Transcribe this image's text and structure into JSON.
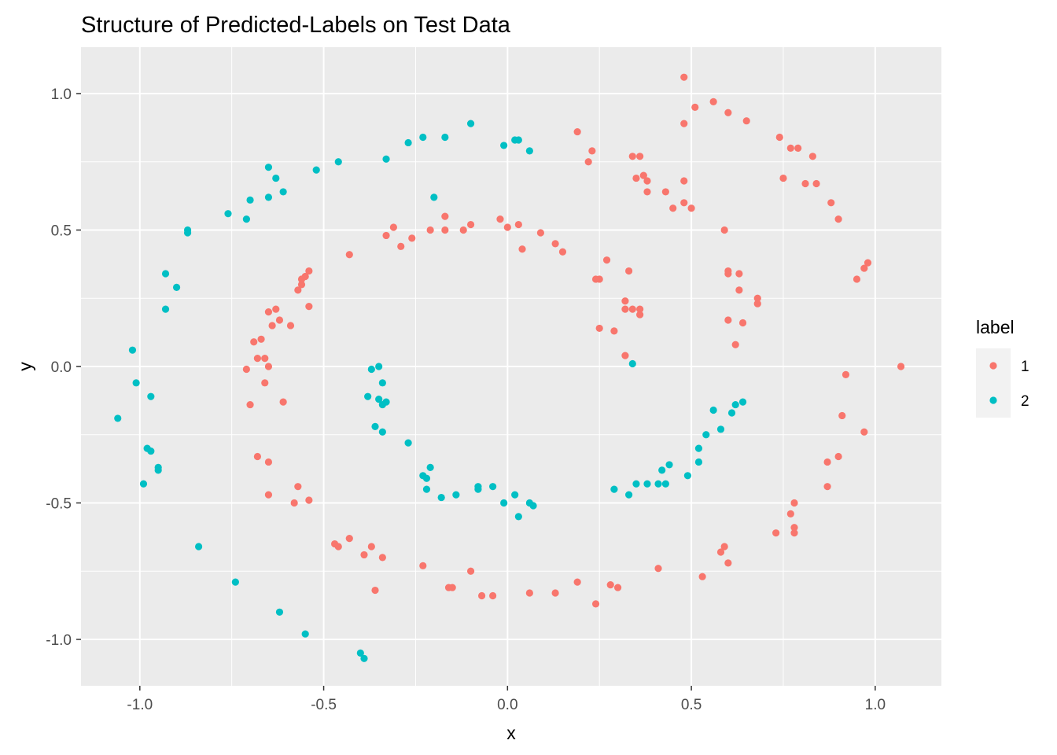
{
  "chart_data": {
    "type": "scatter",
    "title": "Structure of Predicted-Labels on Test Data",
    "xlabel": "x",
    "ylabel": "y",
    "xlim": [
      -1.16,
      1.18
    ],
    "ylim": [
      -1.17,
      1.17
    ],
    "x_ticks": [
      -1.0,
      -0.5,
      0.0,
      0.5,
      1.0
    ],
    "x_tick_labels": [
      "-1.0",
      "-0.5",
      "0.0",
      "0.5",
      "1.0"
    ],
    "y_ticks": [
      -1.0,
      -0.5,
      0.0,
      0.5,
      1.0
    ],
    "y_tick_labels": [
      "-1.0",
      "-0.5",
      "0.0",
      "0.5",
      "1.0"
    ],
    "grid": true,
    "legend": {
      "title": "label",
      "position": "right"
    },
    "series": [
      {
        "name": "1",
        "color": "#F8766D",
        "points": [
          [
            0.48,
            1.06
          ],
          [
            0.51,
            0.95
          ],
          [
            0.56,
            0.97
          ],
          [
            0.6,
            0.93
          ],
          [
            0.65,
            0.9
          ],
          [
            0.48,
            0.89
          ],
          [
            0.19,
            0.86
          ],
          [
            0.23,
            0.79
          ],
          [
            0.22,
            0.75
          ],
          [
            0.34,
            0.77
          ],
          [
            0.36,
            0.77
          ],
          [
            0.35,
            0.69
          ],
          [
            0.37,
            0.7
          ],
          [
            0.38,
            0.68
          ],
          [
            0.38,
            0.64
          ],
          [
            0.43,
            0.64
          ],
          [
            0.45,
            0.58
          ],
          [
            0.48,
            0.68
          ],
          [
            0.48,
            0.6
          ],
          [
            0.5,
            0.58
          ],
          [
            0.59,
            0.5
          ],
          [
            0.74,
            0.84
          ],
          [
            0.77,
            0.8
          ],
          [
            0.79,
            0.8
          ],
          [
            0.83,
            0.77
          ],
          [
            0.75,
            0.69
          ],
          [
            0.81,
            0.67
          ],
          [
            0.84,
            0.67
          ],
          [
            0.88,
            0.6
          ],
          [
            0.9,
            0.54
          ],
          [
            0.98,
            0.38
          ],
          [
            0.97,
            0.36
          ],
          [
            0.95,
            0.32
          ],
          [
            -0.02,
            0.54
          ],
          [
            0.0,
            0.51
          ],
          [
            0.03,
            0.52
          ],
          [
            0.04,
            0.43
          ],
          [
            0.09,
            0.49
          ],
          [
            0.13,
            0.45
          ],
          [
            0.15,
            0.42
          ],
          [
            -0.1,
            0.52
          ],
          [
            -0.12,
            0.5
          ],
          [
            -0.17,
            0.55
          ],
          [
            -0.17,
            0.5
          ],
          [
            -0.21,
            0.5
          ],
          [
            -0.26,
            0.47
          ],
          [
            -0.31,
            0.51
          ],
          [
            -0.33,
            0.48
          ],
          [
            -0.29,
            0.44
          ],
          [
            -0.43,
            0.41
          ],
          [
            0.25,
            0.32
          ],
          [
            0.27,
            0.39
          ],
          [
            0.24,
            0.32
          ],
          [
            0.33,
            0.35
          ],
          [
            0.32,
            0.24
          ],
          [
            0.32,
            0.21
          ],
          [
            0.34,
            0.21
          ],
          [
            0.36,
            0.21
          ],
          [
            0.36,
            0.19
          ],
          [
            0.25,
            0.14
          ],
          [
            0.29,
            0.13
          ],
          [
            0.32,
            0.04
          ],
          [
            0.6,
            0.34
          ],
          [
            0.6,
            0.35
          ],
          [
            0.63,
            0.34
          ],
          [
            0.63,
            0.28
          ],
          [
            0.68,
            0.25
          ],
          [
            0.68,
            0.23
          ],
          [
            0.6,
            0.17
          ],
          [
            0.64,
            0.16
          ],
          [
            0.62,
            0.08
          ],
          [
            -0.54,
            0.35
          ],
          [
            -0.55,
            0.33
          ],
          [
            -0.56,
            0.32
          ],
          [
            -0.56,
            0.3
          ],
          [
            -0.57,
            0.28
          ],
          [
            -0.54,
            0.22
          ],
          [
            -0.63,
            0.21
          ],
          [
            -0.65,
            0.2
          ],
          [
            -0.64,
            0.15
          ],
          [
            -0.62,
            0.17
          ],
          [
            -0.59,
            0.15
          ],
          [
            -0.67,
            0.1
          ],
          [
            -0.69,
            0.09
          ],
          [
            -0.68,
            0.03
          ],
          [
            -0.66,
            0.03
          ],
          [
            -0.65,
            0.0
          ],
          [
            -0.71,
            -0.01
          ],
          [
            -0.66,
            -0.06
          ],
          [
            -0.61,
            -0.13
          ],
          [
            -0.7,
            -0.14
          ],
          [
            -0.68,
            -0.33
          ],
          [
            -0.65,
            -0.35
          ],
          [
            -0.65,
            -0.47
          ],
          [
            -0.58,
            -0.5
          ],
          [
            -0.57,
            -0.44
          ],
          [
            -0.54,
            -0.49
          ],
          [
            -0.47,
            -0.65
          ],
          [
            -0.46,
            -0.66
          ],
          [
            -0.43,
            -0.63
          ],
          [
            -0.39,
            -0.69
          ],
          [
            -0.37,
            -0.66
          ],
          [
            -0.34,
            -0.7
          ],
          [
            -0.36,
            -0.82
          ],
          [
            -0.23,
            -0.73
          ],
          [
            -0.16,
            -0.81
          ],
          [
            -0.15,
            -0.81
          ],
          [
            -0.1,
            -0.75
          ],
          [
            -0.07,
            -0.84
          ],
          [
            -0.04,
            -0.84
          ],
          [
            0.06,
            -0.83
          ],
          [
            0.13,
            -0.83
          ],
          [
            0.19,
            -0.79
          ],
          [
            0.24,
            -0.87
          ],
          [
            0.28,
            -0.8
          ],
          [
            0.3,
            -0.81
          ],
          [
            0.41,
            -0.74
          ],
          [
            0.53,
            -0.77
          ],
          [
            0.59,
            -0.66
          ],
          [
            0.58,
            -0.68
          ],
          [
            0.6,
            -0.72
          ],
          [
            0.73,
            -0.61
          ],
          [
            0.77,
            -0.54
          ],
          [
            0.78,
            -0.59
          ],
          [
            0.78,
            -0.61
          ],
          [
            0.78,
            -0.5
          ],
          [
            0.87,
            -0.44
          ],
          [
            0.87,
            -0.35
          ],
          [
            0.9,
            -0.33
          ],
          [
            0.91,
            -0.18
          ],
          [
            0.92,
            -0.03
          ],
          [
            0.97,
            -0.24
          ],
          [
            1.07,
            0.0
          ]
        ]
      },
      {
        "name": "2",
        "color": "#00BFC4",
        "points": [
          [
            -0.1,
            0.89
          ],
          [
            -0.01,
            0.81
          ],
          [
            0.02,
            0.83
          ],
          [
            0.03,
            0.83
          ],
          [
            0.06,
            0.79
          ],
          [
            -0.17,
            0.84
          ],
          [
            -0.23,
            0.84
          ],
          [
            -0.27,
            0.82
          ],
          [
            -0.33,
            0.76
          ],
          [
            -0.46,
            0.75
          ],
          [
            -0.52,
            0.72
          ],
          [
            -0.65,
            0.73
          ],
          [
            -0.63,
            0.69
          ],
          [
            -0.61,
            0.64
          ],
          [
            -0.65,
            0.62
          ],
          [
            -0.7,
            0.61
          ],
          [
            -0.71,
            0.54
          ],
          [
            -0.76,
            0.56
          ],
          [
            -0.87,
            0.5
          ],
          [
            -0.87,
            0.49
          ],
          [
            -0.93,
            0.34
          ],
          [
            -0.9,
            0.29
          ],
          [
            -0.93,
            0.21
          ],
          [
            -0.2,
            0.62
          ],
          [
            -1.02,
            0.06
          ],
          [
            -1.01,
            -0.06
          ],
          [
            -0.97,
            -0.11
          ],
          [
            -1.06,
            -0.19
          ],
          [
            -0.98,
            -0.3
          ],
          [
            -0.97,
            -0.31
          ],
          [
            -0.95,
            -0.37
          ],
          [
            -0.95,
            -0.38
          ],
          [
            -0.99,
            -0.43
          ],
          [
            -0.84,
            -0.66
          ],
          [
            -0.74,
            -0.79
          ],
          [
            -0.62,
            -0.9
          ],
          [
            -0.55,
            -0.98
          ],
          [
            -0.4,
            -1.05
          ],
          [
            -0.39,
            -1.07
          ],
          [
            -0.37,
            -0.01
          ],
          [
            -0.35,
            0.0
          ],
          [
            -0.34,
            -0.06
          ],
          [
            -0.38,
            -0.11
          ],
          [
            -0.35,
            -0.12
          ],
          [
            -0.33,
            -0.13
          ],
          [
            -0.34,
            -0.14
          ],
          [
            -0.36,
            -0.22
          ],
          [
            -0.34,
            -0.24
          ],
          [
            -0.27,
            -0.28
          ],
          [
            -0.21,
            -0.37
          ],
          [
            -0.23,
            -0.4
          ],
          [
            -0.22,
            -0.41
          ],
          [
            -0.22,
            -0.45
          ],
          [
            -0.18,
            -0.48
          ],
          [
            -0.14,
            -0.47
          ],
          [
            -0.08,
            -0.44
          ],
          [
            -0.08,
            -0.45
          ],
          [
            -0.04,
            -0.44
          ],
          [
            -0.01,
            -0.5
          ],
          [
            0.02,
            -0.47
          ],
          [
            0.03,
            -0.55
          ],
          [
            0.06,
            -0.5
          ],
          [
            0.07,
            -0.51
          ],
          [
            0.29,
            -0.45
          ],
          [
            0.33,
            -0.47
          ],
          [
            0.35,
            -0.43
          ],
          [
            0.38,
            -0.43
          ],
          [
            0.41,
            -0.43
          ],
          [
            0.43,
            -0.43
          ],
          [
            0.42,
            -0.38
          ],
          [
            0.44,
            -0.36
          ],
          [
            0.49,
            -0.4
          ],
          [
            0.52,
            -0.35
          ],
          [
            0.52,
            -0.3
          ],
          [
            0.54,
            -0.25
          ],
          [
            0.56,
            -0.16
          ],
          [
            0.58,
            -0.23
          ],
          [
            0.61,
            -0.17
          ],
          [
            0.62,
            -0.14
          ],
          [
            0.64,
            -0.13
          ],
          [
            0.34,
            0.01
          ]
        ]
      }
    ]
  }
}
